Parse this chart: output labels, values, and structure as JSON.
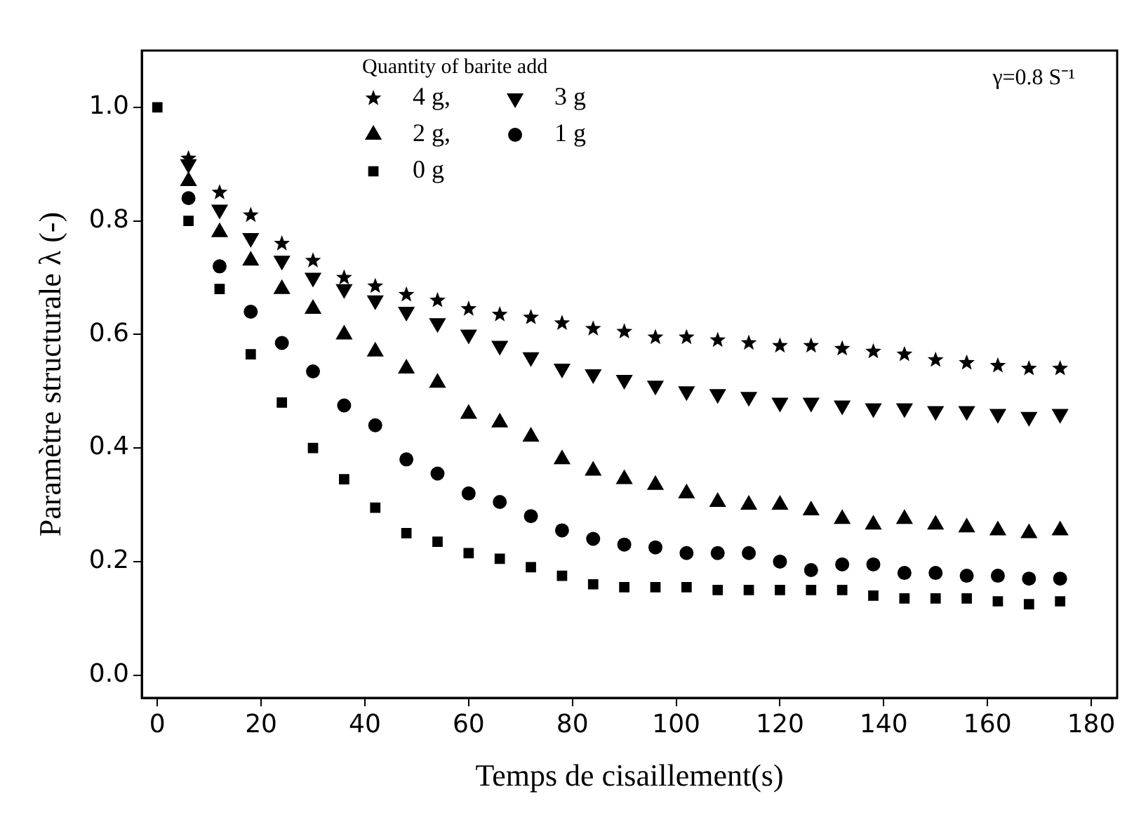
{
  "chart_data": {
    "type": "scatter",
    "xlabel": "Temps de cisaillement(s)",
    "ylabel": "Paramètre structurale λ (-)",
    "legend_title": "Quantity of barite add",
    "legend": "top left",
    "grid": false,
    "annotations": [
      "γ=0.8 S⁻¹"
    ],
    "x": [
      0,
      6,
      12,
      18,
      24,
      30,
      36,
      42,
      48,
      54,
      60,
      66,
      72,
      78,
      84,
      90,
      96,
      102,
      108,
      114,
      120,
      126,
      132,
      138,
      144,
      150,
      156,
      162,
      168,
      174
    ],
    "xlim": [
      -3,
      185
    ],
    "xticks": [
      0,
      20,
      40,
      60,
      80,
      100,
      120,
      140,
      160,
      180
    ],
    "ylim": [
      -0.04,
      1.1
    ],
    "yticks": [
      {
        "value": 0,
        "label": "0.0"
      },
      0.2,
      0.4,
      0.6,
      0.8,
      {
        "value": 1,
        "label": "1.0"
      }
    ],
    "series": [
      {
        "name": "4 g,",
        "color": "#000000",
        "marker": "star",
        "values": [
          null,
          0.91,
          0.85,
          0.81,
          0.76,
          0.73,
          0.7,
          0.685,
          0.67,
          0.66,
          0.645,
          0.635,
          0.63,
          0.62,
          0.61,
          0.605,
          0.595,
          0.595,
          0.59,
          0.585,
          0.58,
          0.58,
          0.575,
          0.57,
          0.565,
          0.555,
          0.55,
          0.545,
          0.54,
          0.54
        ]
      },
      {
        "name": "3 g",
        "color": "#000000",
        "marker": "triangle_down",
        "values": [
          null,
          0.9,
          0.82,
          0.77,
          0.73,
          0.7,
          0.68,
          0.66,
          0.64,
          0.62,
          0.6,
          0.58,
          0.56,
          0.54,
          0.53,
          0.52,
          0.51,
          0.5,
          0.495,
          0.49,
          0.48,
          0.48,
          0.475,
          0.47,
          0.47,
          0.465,
          0.465,
          0.46,
          0.455,
          0.46
        ]
      },
      {
        "name": "2 g,",
        "color": "#000000",
        "marker": "triangle",
        "values": [
          null,
          0.87,
          0.78,
          0.73,
          0.68,
          0.645,
          0.6,
          0.57,
          0.54,
          0.515,
          0.46,
          0.445,
          0.42,
          0.38,
          0.36,
          0.345,
          0.335,
          0.32,
          0.305,
          0.3,
          0.3,
          0.29,
          0.275,
          0.265,
          0.275,
          0.265,
          0.26,
          0.255,
          0.25,
          0.255
        ]
      },
      {
        "name": "1 g",
        "color": "#000000",
        "marker": "circle",
        "values": [
          null,
          0.84,
          0.72,
          0.64,
          0.585,
          0.535,
          0.475,
          0.44,
          0.38,
          0.355,
          0.32,
          0.305,
          0.28,
          0.255,
          0.24,
          0.23,
          0.225,
          0.215,
          0.215,
          0.215,
          0.2,
          0.185,
          0.195,
          0.195,
          0.18,
          0.18,
          0.175,
          0.175,
          0.17,
          0.17
        ]
      },
      {
        "name": "0 g",
        "color": "#000000",
        "marker": "square",
        "values": [
          1.0,
          0.8,
          0.68,
          0.565,
          0.48,
          0.4,
          0.345,
          0.295,
          0.25,
          0.235,
          0.215,
          0.205,
          0.19,
          0.175,
          0.16,
          0.155,
          0.155,
          0.155,
          0.15,
          0.15,
          0.15,
          0.15,
          0.15,
          0.14,
          0.135,
          0.135,
          0.135,
          0.13,
          0.125,
          0.13
        ]
      }
    ]
  }
}
